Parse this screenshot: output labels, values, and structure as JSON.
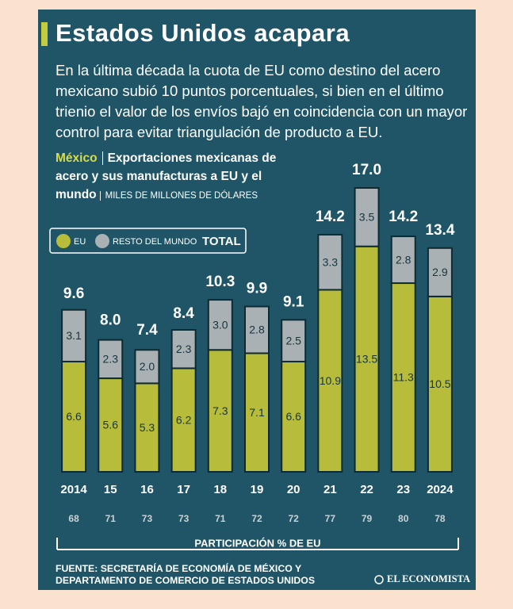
{
  "title": "Estados Unidos acapara",
  "intro": "En la última década la cuota de EU como destino del acero mexicano subió 10 puntos porcentuales, si bien en el último trienio el valor de los envíos bajó en coincidencia con un mayor control para evitar triangulación de producto a EU.",
  "chart_data": {
    "type": "bar",
    "stacked": true,
    "source_label": "México",
    "subtitle": "Exportaciones mexicanas de acero y sus manufacturas a EU y el mundo",
    "unit": "MILES DE MILLONES DE DÓLARES",
    "categories": [
      "2014",
      "15",
      "16",
      "17",
      "18",
      "19",
      "20",
      "21",
      "22",
      "23",
      "2024"
    ],
    "series": [
      {
        "name": "EU",
        "color": "#b7bd3a",
        "values": [
          6.6,
          5.6,
          5.3,
          6.2,
          7.3,
          7.1,
          6.6,
          10.9,
          13.5,
          11.3,
          10.5
        ]
      },
      {
        "name": "RESTO DEL MUNDO",
        "color": "#a9b1b4",
        "values": [
          3.1,
          2.3,
          2.0,
          2.3,
          3.0,
          2.8,
          2.5,
          3.3,
          3.5,
          2.8,
          2.9
        ],
        "value_labels": [
          "3.1",
          "2.3",
          "2.0",
          "2.3",
          "3.0",
          "2.8",
          "2.5",
          "3.3",
          "3.5",
          "2.8",
          "2.9"
        ]
      }
    ],
    "totals": {
      "name": "TOTAL",
      "values": [
        9.6,
        8.0,
        7.4,
        8.4,
        10.3,
        9.9,
        9.1,
        14.2,
        17.0,
        14.2,
        13.4
      ],
      "value_labels": [
        "9.6",
        "8.0",
        "7.4",
        "8.4",
        "10.3",
        "9.9",
        "9.1",
        "14.2",
        "17.0",
        "14.2",
        "13.4"
      ]
    },
    "share": {
      "label": "PARTICIPACIÓN % DE EU",
      "values": [
        68,
        71,
        73,
        73,
        71,
        72,
        72,
        77,
        79,
        80,
        78
      ]
    }
  },
  "source": "FUENTE: SECRETARÍA DE ECONOMÍA DE MÉXICO Y DEPARTAMENTO DE COMERCIO DE ESTADOS UNIDOS",
  "logo": "EL ECONOMISTA"
}
